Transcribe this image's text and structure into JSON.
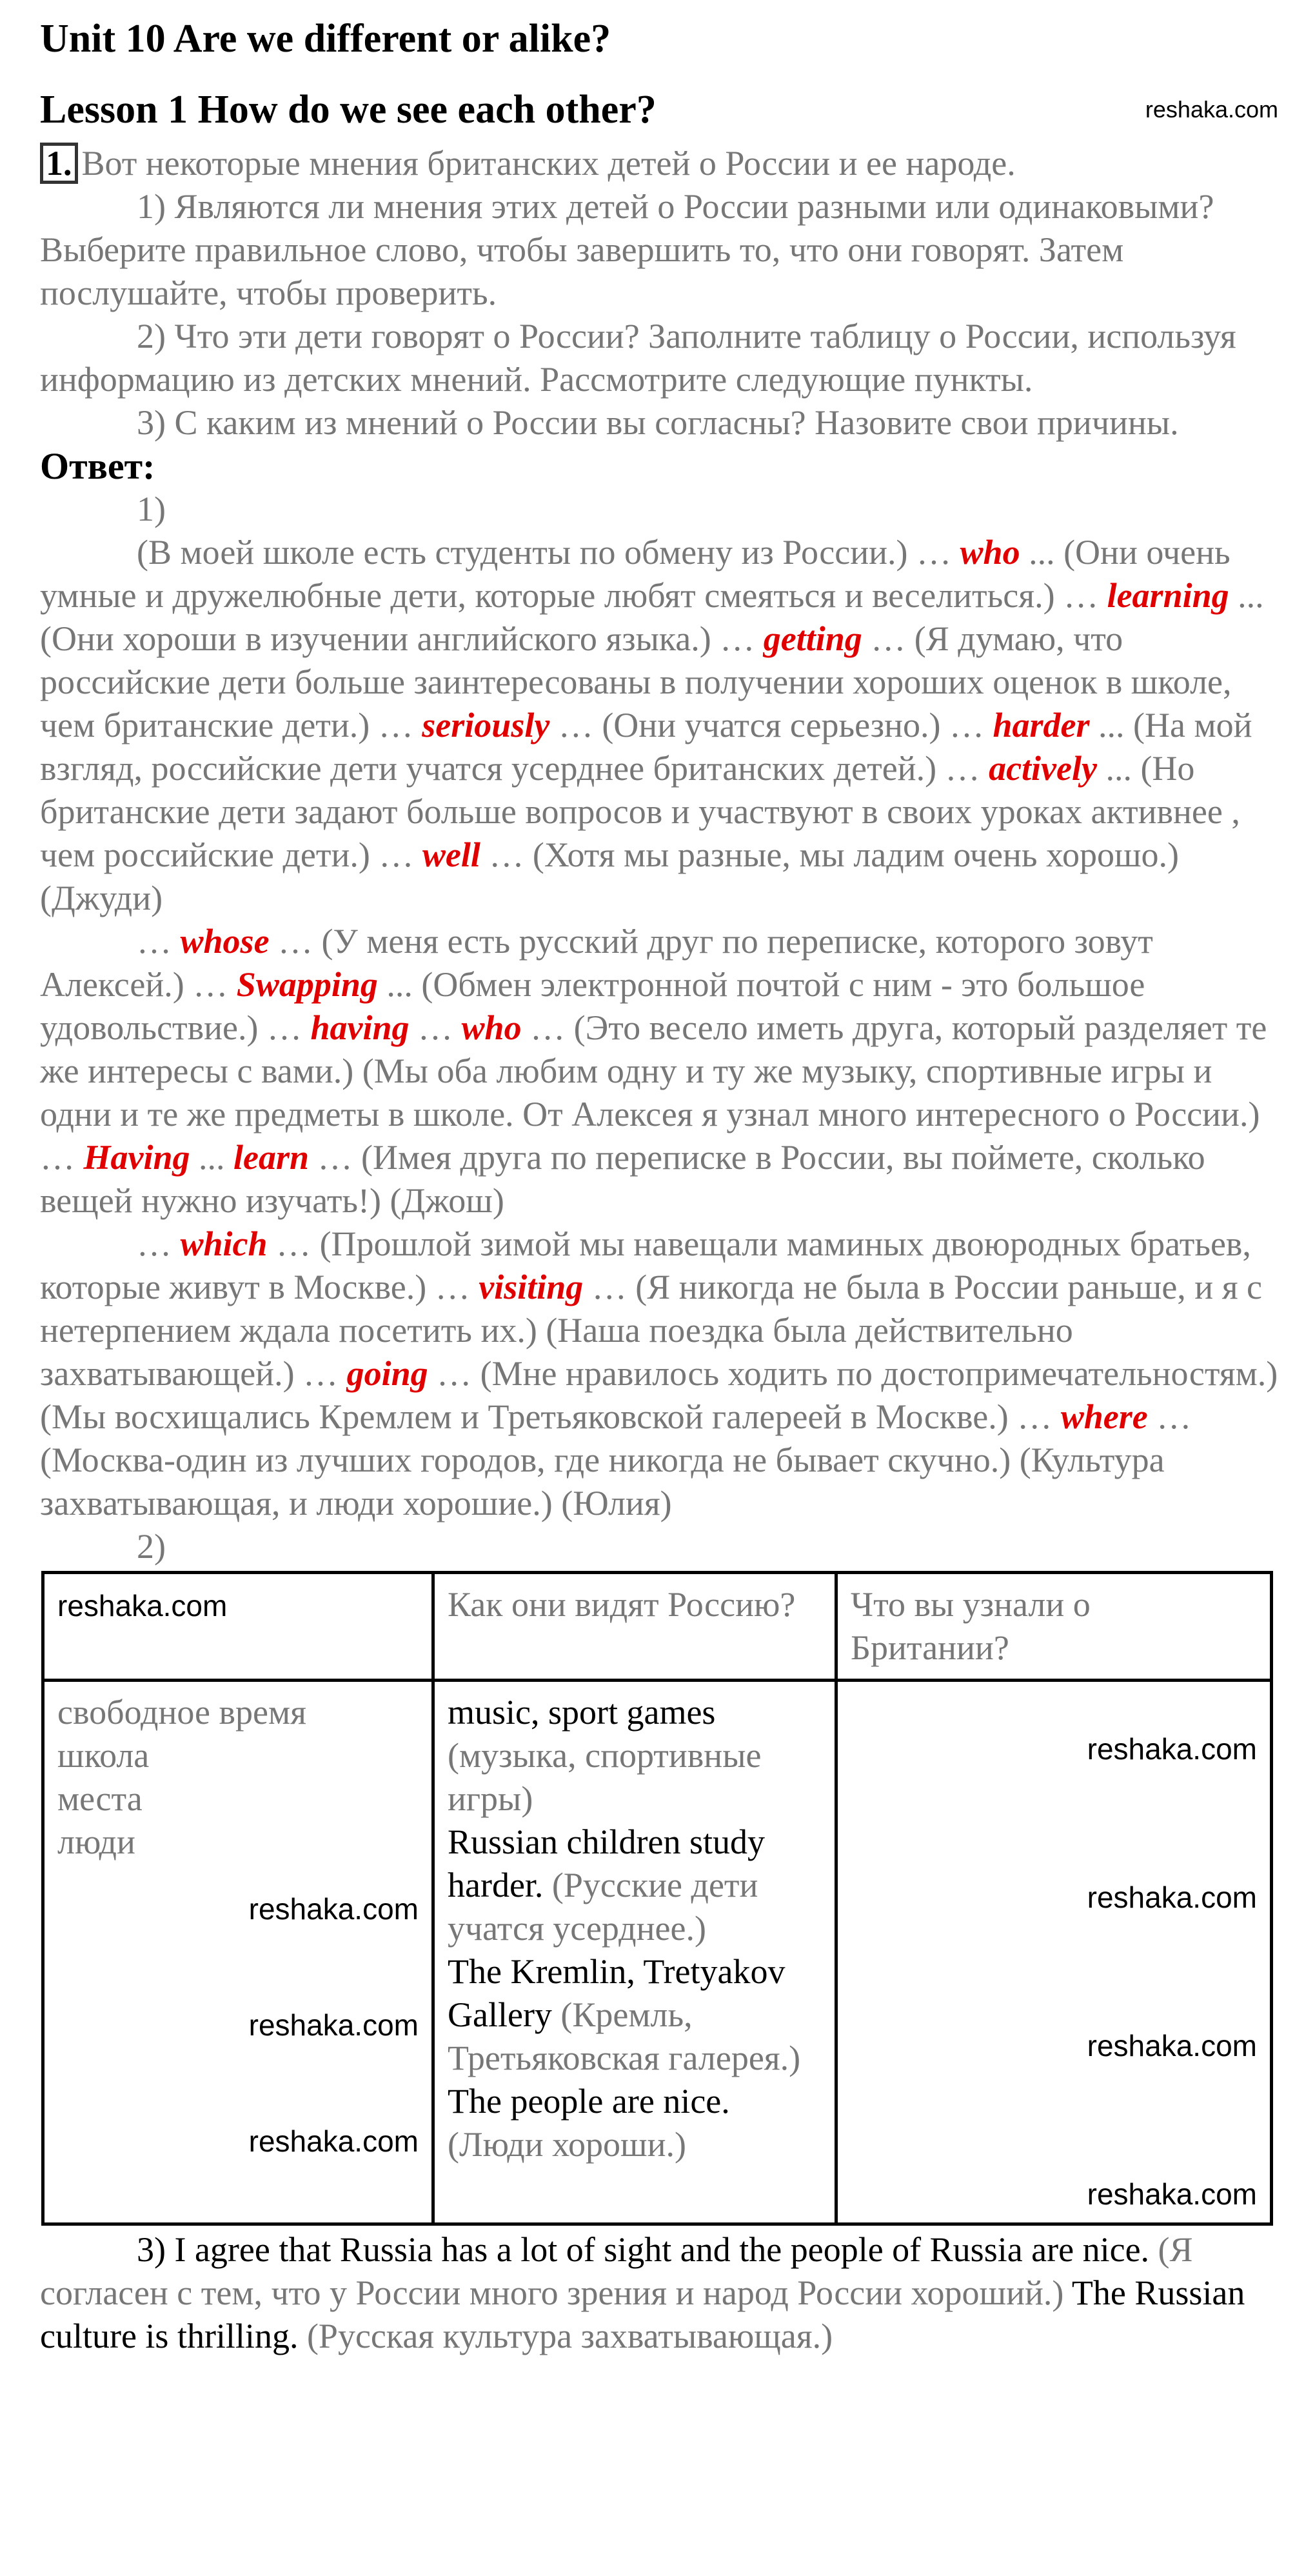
{
  "unit_title": "Unit 10 Are we different or alike?",
  "lesson_title": "Lesson 1 How do we see each other?",
  "exercise": {
    "number": "1.",
    "intro": "Вот некоторые мнения британских детей о России и ее народе.",
    "task1": "1) Являются ли мнения этих детей о России разными или одинаковыми? Выберите правильное слово, чтобы завершить то, что они говорят. Затем послушайте, чтобы проверить.",
    "task2": "2) Что эти дети говорят о России? Заполните таблицу о России, используя информацию из детских мнений. Рассмотрите следующие пункты.",
    "task3": "3) С каким из мнений о России вы согласны? Назовите свои причины."
  },
  "answer_label": "Ответ:",
  "part1_label": "1)",
  "part1_paragraphs": [
    [
      {
        "t": "(В моей школе есть студенты по обмену из России.) … "
      },
      {
        "t": "who",
        "a": true
      },
      {
        "t": " ... (Они очень умные и дружелюбные дети, которые любят смеяться и веселиться.) … "
      },
      {
        "t": "learning",
        "a": true
      },
      {
        "t": " ... (Они хороши в изучении английского языка.) … "
      },
      {
        "t": "getting",
        "a": true
      },
      {
        "t": " … (Я думаю, что российские дети больше заинтересованы в получении хороших оценок в школе, чем британские дети.) … "
      },
      {
        "t": "seriously",
        "a": true
      },
      {
        "t": " … (Они учатся серьезно.) … "
      },
      {
        "t": "harder",
        "a": true
      },
      {
        "t": " ... (На мой взгляд, российские дети учатся усерднее британских детей.) … "
      },
      {
        "t": "actively",
        "a": true
      },
      {
        "t": " ... (Но британские дети задают больше вопросов и участвуют в своих уроках активнее , чем российские дети.) … "
      },
      {
        "t": "well",
        "a": true
      },
      {
        "t": " … (Хотя мы разные, мы ладим очень хорошо.) (Джуди)"
      }
    ],
    [
      {
        "t": "… "
      },
      {
        "t": "whose",
        "a": true
      },
      {
        "t": " … (У меня есть русский друг по переписке, которого зовут Алексей.) … "
      },
      {
        "t": "Swapping",
        "a": true
      },
      {
        "t": " ... (Обмен электронной почтой с ним - это большое удовольствие.) … "
      },
      {
        "t": "having",
        "a": true
      },
      {
        "t": " … "
      },
      {
        "t": "who",
        "a": true
      },
      {
        "t": " … (Это весело иметь друга, который разделяет те же интересы с вами.) (Мы оба любим одну и ту же музыку, спортивные игры и одни и те же предметы в школе. От Алексея я узнал много интересного о России.) … "
      },
      {
        "t": "Having",
        "a": true
      },
      {
        "t": " ... "
      },
      {
        "t": "learn",
        "a": true
      },
      {
        "t": " … (Имея друга по переписке в России, вы поймете, сколько вещей нужно изучать!) (Джош)"
      }
    ],
    [
      {
        "t": "… "
      },
      {
        "t": "which",
        "a": true
      },
      {
        "t": " … (Прошлой зимой мы навещали маминых двоюродных братьев, которые живут в Москве.) … "
      },
      {
        "t": "visiting",
        "a": true
      },
      {
        "t": " … (Я никогда не была в России раньше, и я с нетерпением ждала посетить их.) (Наша поездка была действительно захватывающей.) … "
      },
      {
        "t": "going",
        "a": true
      },
      {
        "t": " … (Мне нравилось ходить по достопримечательностям.) (Мы восхищались Кремлем и Третьяковской галереей в Москве.) … "
      },
      {
        "t": "where",
        "a": true
      },
      {
        "t": " … (Москва-один из лучших городов, где никогда не бывает скучно.) (Культура захватывающая, и люди хорошие.) (Юлия)"
      }
    ]
  ],
  "part2_label": "2)",
  "table": {
    "headers": [
      "",
      "Как они видят Россию?",
      "Что вы узнали о Британии?"
    ],
    "topics": [
      "свободное время",
      "школа",
      "места",
      "люди"
    ],
    "answers": [
      {
        "en": "music, sport games",
        "ru": "(музыка, спортивные игры)"
      },
      {
        "en": "Russian children study harder.",
        "ru": "(Русские дети учатся усерднее.)"
      },
      {
        "en": "The Kremlin, Tretyakov Gallery",
        "ru": "(Кремль, Третьяковская галерея.)"
      },
      {
        "en": "The people are nice.",
        "ru": "(Люди хороши.)"
      }
    ]
  },
  "part3": {
    "label": "3)",
    "en1": "I agree that Russia has a lot of sight and the people of Russia are nice.",
    "ru1": "(Я согласен с тем, что у России много зрения и народ России хороший.)",
    "en2": "The Russian culture is thrilling.",
    "ru2": "(Русская культура захватывающая.)"
  },
  "watermark": "reshaka.com",
  "colors": {
    "answer": "#e00000",
    "translation": "#777777",
    "text": "#000000"
  }
}
